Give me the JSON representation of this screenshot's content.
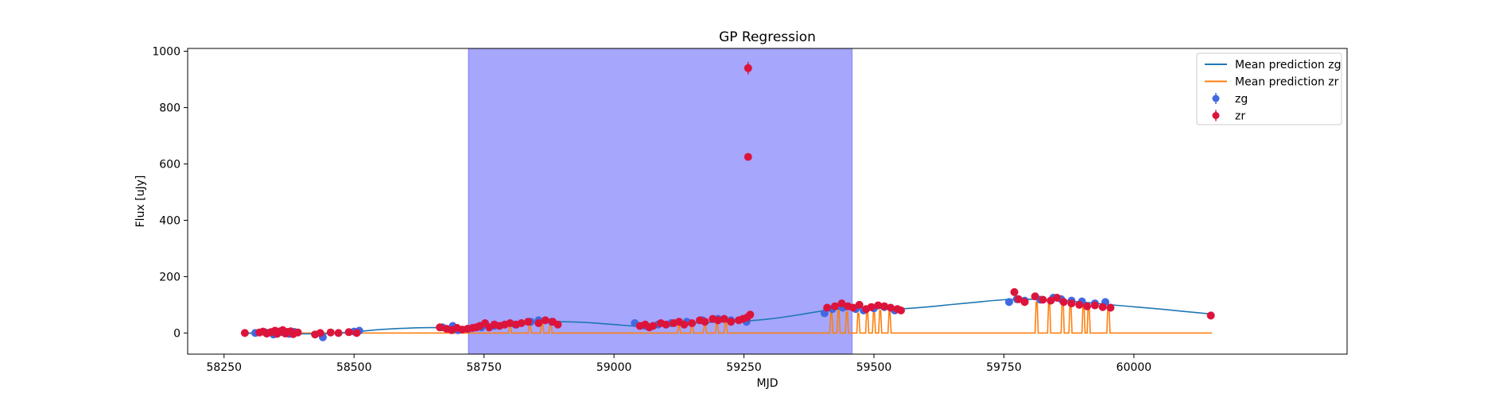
{
  "chart_data": {
    "type": "scatter",
    "title": "GP Regression",
    "xlabel": "MJD",
    "ylabel": "Flux [uJy]",
    "xlim": [
      58180,
      60410
    ],
    "ylim": [
      -75,
      1010
    ],
    "xticks": [
      58250,
      58500,
      58750,
      59000,
      59250,
      59500,
      59750,
      60000
    ],
    "yticks": [
      0,
      200,
      400,
      600,
      800,
      1000
    ],
    "grid": false,
    "legend_position": "top-right",
    "highlight_span": {
      "x0": 58720,
      "x1": 59458,
      "color": "#a6a6fc"
    },
    "colors": {
      "zg_line": "#1f77b4",
      "zr_line": "#ff7f0e",
      "zg_points": "#4169e1",
      "zr_points": "#dc143c"
    },
    "series": [
      {
        "name": "Mean prediction zg",
        "kind": "line",
        "x": [
          58290,
          58350,
          58400,
          58450,
          58500,
          58550,
          58600,
          58650,
          58700,
          58750,
          58800,
          58850,
          58900,
          58950,
          59000,
          59050,
          59100,
          59150,
          59200,
          59250,
          59300,
          59350,
          59400,
          59450,
          59500,
          59550,
          59600,
          59650,
          59700,
          59750,
          59800,
          59850,
          59900,
          59950,
          60000,
          60050,
          60100,
          60150
        ],
        "y": [
          -1,
          -2,
          -3,
          -2,
          4,
          12,
          17,
          19,
          18,
          22,
          30,
          38,
          40,
          37,
          30,
          24,
          28,
          35,
          39,
          42,
          50,
          63,
          78,
          88,
          88,
          86,
          92,
          101,
          110,
          118,
          120,
          117,
          110,
          101,
          93,
          85,
          76,
          67
        ]
      },
      {
        "name": "Mean prediction zr",
        "kind": "line",
        "baseline": 0,
        "x_range": [
          58290,
          60150
        ],
        "spikes": [
          {
            "x": 58800,
            "y": 30
          },
          {
            "x": 58838,
            "y": 35
          },
          {
            "x": 58862,
            "y": 40
          },
          {
            "x": 58878,
            "y": 35
          },
          {
            "x": 59125,
            "y": 25
          },
          {
            "x": 59150,
            "y": 30
          },
          {
            "x": 59175,
            "y": 30
          },
          {
            "x": 59198,
            "y": 35
          },
          {
            "x": 59215,
            "y": 40
          },
          {
            "x": 59418,
            "y": 75
          },
          {
            "x": 59432,
            "y": 80
          },
          {
            "x": 59448,
            "y": 75
          },
          {
            "x": 59470,
            "y": 70
          },
          {
            "x": 59487,
            "y": 80
          },
          {
            "x": 59500,
            "y": 75
          },
          {
            "x": 59512,
            "y": 80
          },
          {
            "x": 59530,
            "y": 75
          },
          {
            "x": 59813,
            "y": 110
          },
          {
            "x": 59837,
            "y": 115
          },
          {
            "x": 59863,
            "y": 120
          },
          {
            "x": 59878,
            "y": 110
          },
          {
            "x": 59903,
            "y": 100
          },
          {
            "x": 59913,
            "y": 100
          },
          {
            "x": 59951,
            "y": 100
          }
        ]
      },
      {
        "name": "zg",
        "kind": "scatter",
        "points": [
          [
            58310,
            0
          ],
          [
            58330,
            2
          ],
          [
            58345,
            -5
          ],
          [
            58360,
            3
          ],
          [
            58375,
            -3
          ],
          [
            58385,
            4
          ],
          [
            58440,
            -15
          ],
          [
            58500,
            5
          ],
          [
            58510,
            8
          ],
          [
            58670,
            20
          ],
          [
            58690,
            25
          ],
          [
            58700,
            10
          ],
          [
            58720,
            15
          ],
          [
            58745,
            20
          ],
          [
            58770,
            25
          ],
          [
            58810,
            30
          ],
          [
            58840,
            40
          ],
          [
            58855,
            45
          ],
          [
            58880,
            40
          ],
          [
            59040,
            35
          ],
          [
            59060,
            25
          ],
          [
            59085,
            30
          ],
          [
            59110,
            35
          ],
          [
            59140,
            40
          ],
          [
            59170,
            45
          ],
          [
            59200,
            50
          ],
          [
            59225,
            45
          ],
          [
            59255,
            40
          ],
          [
            59405,
            70
          ],
          [
            59420,
            85
          ],
          [
            59440,
            90
          ],
          [
            59465,
            85
          ],
          [
            59480,
            80
          ],
          [
            59500,
            88
          ],
          [
            59520,
            92
          ],
          [
            59540,
            80
          ],
          [
            59760,
            110
          ],
          [
            59775,
            120
          ],
          [
            59790,
            115
          ],
          [
            59820,
            118
          ],
          [
            59845,
            125
          ],
          [
            59860,
            120
          ],
          [
            59880,
            115
          ],
          [
            59900,
            112
          ],
          [
            59925,
            105
          ],
          [
            59945,
            110
          ]
        ]
      },
      {
        "name": "zr",
        "kind": "scatter",
        "points": [
          [
            58290,
            0
          ],
          [
            58318,
            2
          ],
          [
            58325,
            5
          ],
          [
            58332,
            -2
          ],
          [
            58340,
            3
          ],
          [
            58348,
            8
          ],
          [
            58352,
            -3
          ],
          [
            58358,
            6
          ],
          [
            58363,
            10
          ],
          [
            58368,
            -2
          ],
          [
            58372,
            4
          ],
          [
            58378,
            6
          ],
          [
            58383,
            -4
          ],
          [
            58392,
            2
          ],
          [
            58425,
            -5
          ],
          [
            58435,
            0
          ],
          [
            58455,
            2
          ],
          [
            58470,
            0
          ],
          [
            58490,
            3
          ],
          [
            58505,
            0
          ],
          [
            58665,
            20
          ],
          [
            58678,
            15
          ],
          [
            58688,
            10
          ],
          [
            58698,
            18
          ],
          [
            58708,
            12
          ],
          [
            58718,
            15
          ],
          [
            58728,
            18
          ],
          [
            58735,
            20
          ],
          [
            58742,
            25
          ],
          [
            58752,
            35
          ],
          [
            58760,
            20
          ],
          [
            58770,
            30
          ],
          [
            58780,
            25
          ],
          [
            58790,
            30
          ],
          [
            58800,
            35
          ],
          [
            58812,
            30
          ],
          [
            58822,
            35
          ],
          [
            58835,
            40
          ],
          [
            58855,
            35
          ],
          [
            58868,
            45
          ],
          [
            58882,
            40
          ],
          [
            58892,
            30
          ],
          [
            59050,
            25
          ],
          [
            59060,
            30
          ],
          [
            59068,
            20
          ],
          [
            59075,
            25
          ],
          [
            59090,
            35
          ],
          [
            59100,
            30
          ],
          [
            59115,
            35
          ],
          [
            59125,
            40
          ],
          [
            59135,
            30
          ],
          [
            59150,
            35
          ],
          [
            59165,
            45
          ],
          [
            59175,
            40
          ],
          [
            59190,
            50
          ],
          [
            59200,
            45
          ],
          [
            59212,
            50
          ],
          [
            59225,
            40
          ],
          [
            59240,
            45
          ],
          [
            59248,
            50
          ],
          [
            59256,
            55
          ],
          [
            59262,
            65
          ],
          [
            59258,
            940
          ],
          [
            59258,
            625
          ],
          [
            59410,
            90
          ],
          [
            59425,
            95
          ],
          [
            59438,
            105
          ],
          [
            59450,
            95
          ],
          [
            59460,
            90
          ],
          [
            59472,
            100
          ],
          [
            59485,
            85
          ],
          [
            59495,
            92
          ],
          [
            59508,
            98
          ],
          [
            59520,
            95
          ],
          [
            59532,
            90
          ],
          [
            59545,
            85
          ],
          [
            59552,
            80
          ],
          [
            59770,
            145
          ],
          [
            59778,
            120
          ],
          [
            59790,
            110
          ],
          [
            59810,
            130
          ],
          [
            59825,
            118
          ],
          [
            59840,
            115
          ],
          [
            59852,
            125
          ],
          [
            59865,
            110
          ],
          [
            59880,
            105
          ],
          [
            59895,
            100
          ],
          [
            59910,
            95
          ],
          [
            59925,
            98
          ],
          [
            59940,
            92
          ],
          [
            59955,
            90
          ],
          [
            60148,
            62
          ]
        ]
      }
    ],
    "highlighted_errorbars": [
      {
        "series": "zr",
        "x": 59258,
        "y": 940,
        "err": 22
      }
    ]
  }
}
